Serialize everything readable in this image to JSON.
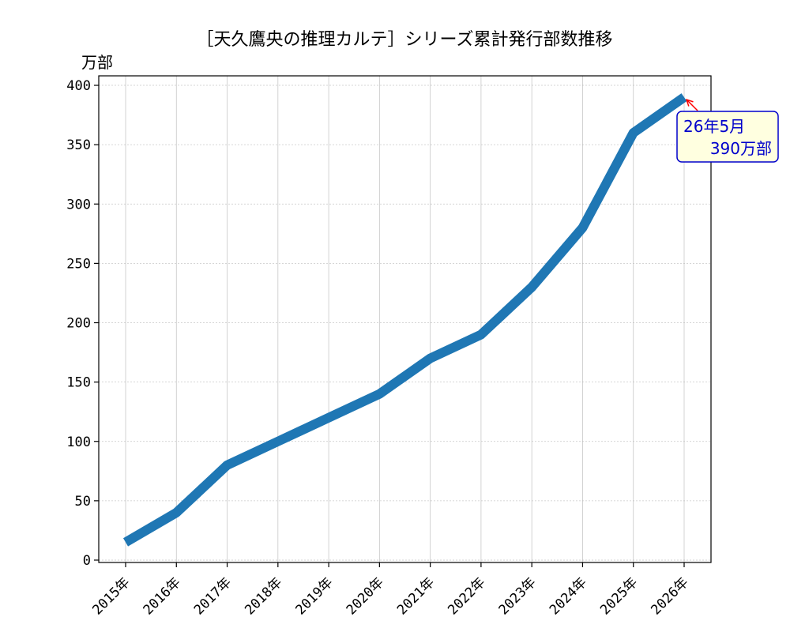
{
  "chart_data": {
    "type": "line",
    "title": "［天久鷹央の推理カルテ］シリーズ累計発行部数推移",
    "xlabel": "",
    "ylabel": "万部",
    "categories": [
      "2015年",
      "2016年",
      "2017年",
      "2018年",
      "2019年",
      "2020年",
      "2021年",
      "2022年",
      "2023年",
      "2024年",
      "2025年",
      "2026年"
    ],
    "series": [
      {
        "values": [
          15,
          40,
          80,
          100,
          120,
          140,
          170,
          190,
          230,
          280,
          360,
          390
        ],
        "color": "#1f77b4"
      }
    ],
    "yticks": [
      0,
      50,
      100,
      150,
      200,
      250,
      300,
      350,
      400
    ],
    "ylim": [
      -2,
      408
    ],
    "grid": true,
    "annotation": {
      "line1": "26年5月",
      "line2": "390万部",
      "target_index": 11,
      "box_face": "#ffffe0",
      "box_edge": "#0000cc",
      "text_color": "#0000cc",
      "arrow_color": "#ff0000"
    }
  }
}
